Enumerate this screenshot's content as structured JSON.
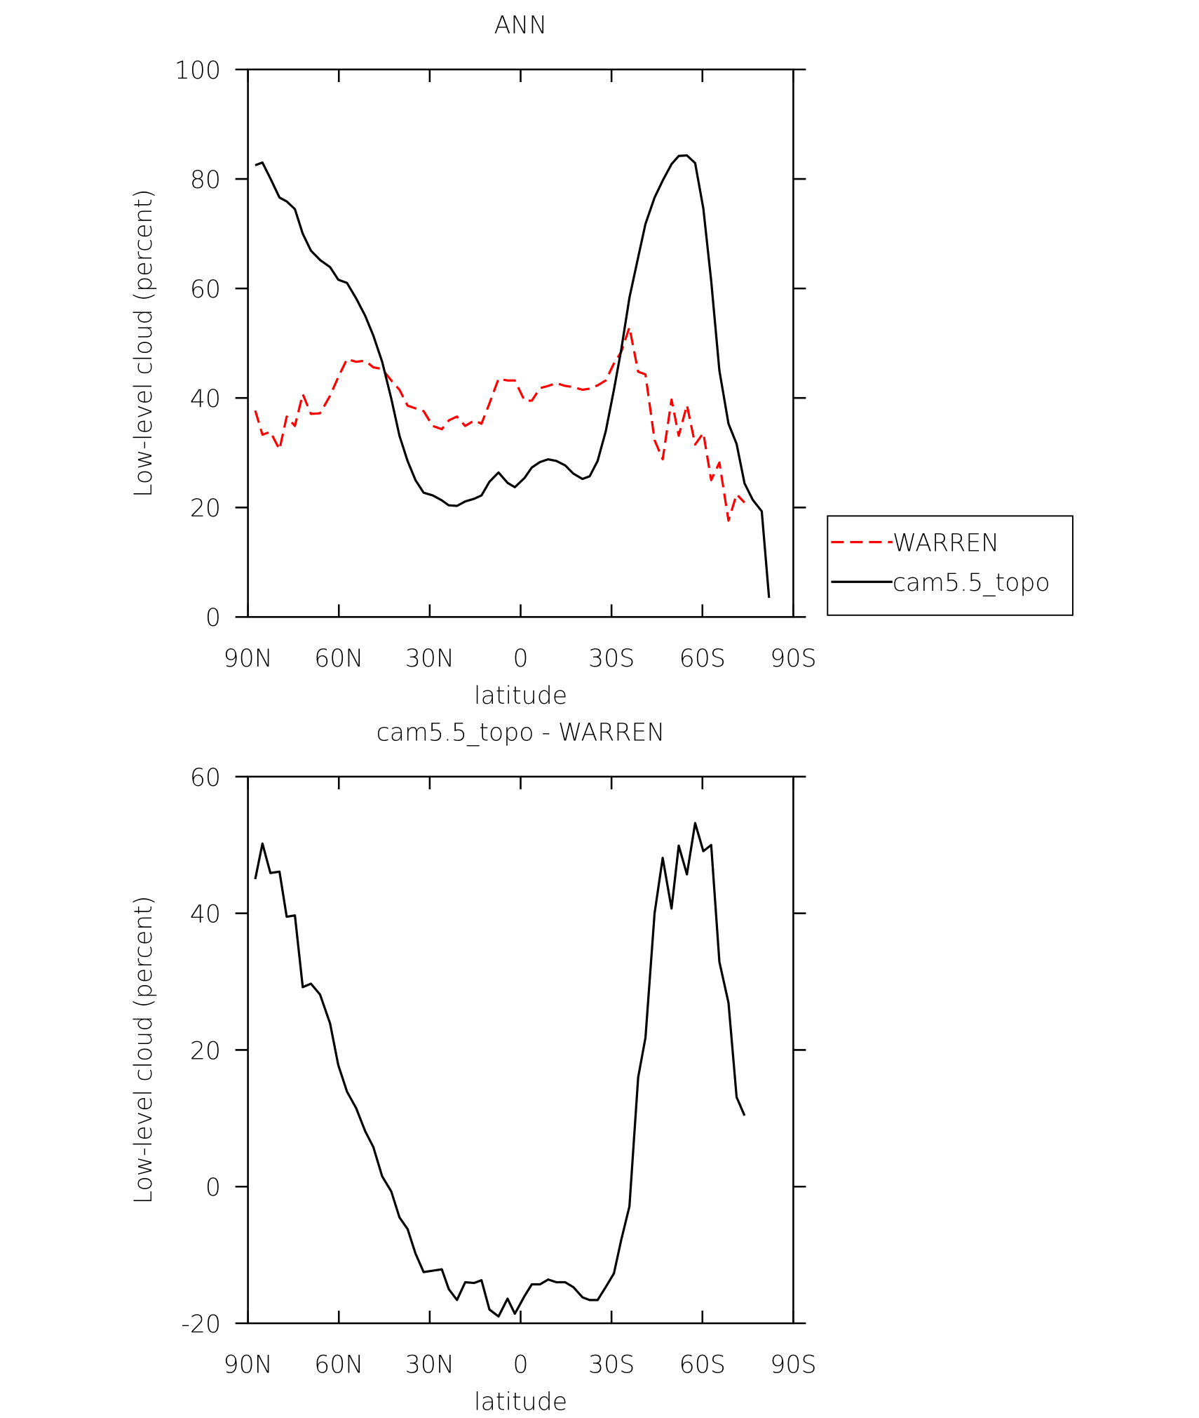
{
  "chart_data": [
    {
      "type": "line",
      "title": "ANN",
      "xlabel": "latitude",
      "ylabel": "Low-level cloud (percent)",
      "xlim": [
        90,
        -90
      ],
      "xticks": [
        {
          "value": 90,
          "label": "90N"
        },
        {
          "value": 60,
          "label": "60N"
        },
        {
          "value": 30,
          "label": "30N"
        },
        0,
        {
          "value": -30,
          "label": "30S"
        },
        {
          "value": -60,
          "label": "60S"
        },
        {
          "value": -90,
          "label": "90S"
        }
      ],
      "ylim": [
        0,
        100
      ],
      "yticks": [
        0,
        20,
        40,
        60,
        80,
        100
      ],
      "legend": "right",
      "x": [
        87.6,
        85.2,
        82.6,
        79.6,
        77.2,
        74.5,
        71.9,
        69.2,
        66.2,
        62.9,
        60.2,
        57.3,
        54.3,
        51.3,
        48.6,
        45.7,
        42.7,
        40.0,
        37.3,
        34.7,
        32.0,
        29.0,
        26.0,
        23.7,
        21.0,
        18.3,
        15.3,
        12.9,
        10.3,
        7.3,
        4.3,
        1.9,
        -1.3,
        -3.7,
        -6.4,
        -9.1,
        -11.8,
        -14.7,
        -17.4,
        -20.4,
        -22.8,
        -25.4,
        -28.1,
        -30.8,
        -33.2,
        -35.9,
        -38.8,
        -41.2,
        -44.2,
        -46.9,
        -49.8,
        -52.2,
        -54.9,
        -57.6,
        -60.3,
        -62.9,
        -65.6,
        -68.6,
        -71.3,
        -73.9,
        -76.6,
        -79.6,
        -82.0
      ],
      "series": [
        {
          "name": "WARREN",
          "color": "#ff0000",
          "dash": true,
          "values": [
            37.7,
            33.3,
            33.8,
            30.6,
            36.6,
            34.9,
            40.7,
            37.1,
            37.2,
            40.4,
            43.8,
            47.1,
            46.6,
            46.8,
            45.6,
            45.3,
            43.2,
            41.5,
            38.6,
            38.1,
            37.6,
            34.9,
            34.3,
            35.9,
            36.6,
            34.9,
            35.9,
            35.3,
            39.0,
            43.5,
            43.2,
            43.2,
            39.5,
            39.5,
            41.8,
            42.2,
            42.7,
            42.2,
            42.0,
            41.5,
            41.7,
            42.3,
            43.2,
            46.3,
            48.4,
            52.9,
            44.8,
            44.3,
            32.3,
            28.8,
            39.7,
            33.1,
            38.7,
            31.5,
            33.6,
            25.0,
            28.2,
            17.6,
            22.4,
            20.9,
            null,
            null,
            null
          ]
        },
        {
          "name": "cam5.5_topo",
          "color": "#000000",
          "dash": false,
          "values": [
            82.5,
            83.0,
            80.1,
            76.6,
            75.9,
            74.5,
            70.0,
            66.9,
            65.2,
            63.9,
            61.6,
            61.0,
            58.2,
            55.0,
            51.4,
            46.6,
            39.9,
            33.1,
            28.5,
            25.0,
            22.7,
            22.2,
            21.3,
            20.4,
            20.3,
            21.1,
            21.6,
            22.2,
            24.7,
            26.4,
            24.5,
            23.7,
            25.4,
            27.3,
            28.3,
            28.8,
            28.5,
            27.7,
            26.2,
            25.2,
            25.7,
            28.5,
            33.9,
            41.5,
            48.8,
            58.3,
            65.7,
            71.8,
            76.6,
            79.7,
            82.7,
            84.2,
            84.3,
            82.9,
            74.6,
            61.4,
            45.0,
            35.3,
            31.6,
            24.4,
            21.4,
            19.3,
            3.5
          ]
        }
      ]
    },
    {
      "type": "line",
      "title": "cam5.5_topo - WARREN",
      "xlabel": "latitude",
      "ylabel": "Low-level cloud (percent)",
      "xlim": [
        90,
        -90
      ],
      "xticks": [
        {
          "value": 90,
          "label": "90N"
        },
        {
          "value": 60,
          "label": "60N"
        },
        {
          "value": 30,
          "label": "30N"
        },
        0,
        {
          "value": -30,
          "label": "30S"
        },
        {
          "value": -60,
          "label": "60S"
        },
        {
          "value": -90,
          "label": "90S"
        }
      ],
      "ylim": [
        -20,
        60
      ],
      "yticks": [
        -20,
        0,
        20,
        40,
        60
      ],
      "x": [
        87.6,
        85.2,
        82.6,
        79.6,
        77.2,
        74.5,
        71.9,
        69.2,
        66.2,
        62.9,
        60.2,
        57.3,
        54.3,
        51.3,
        48.6,
        45.7,
        42.7,
        40.0,
        37.3,
        34.7,
        32.0,
        29.0,
        26.0,
        23.7,
        21.0,
        18.3,
        15.3,
        12.9,
        10.3,
        7.3,
        4.3,
        1.9,
        -1.3,
        -3.7,
        -6.4,
        -9.1,
        -11.8,
        -14.7,
        -17.4,
        -20.4,
        -22.8,
        -25.4,
        -28.1,
        -30.8,
        -33.2,
        -35.9,
        -38.8,
        -41.2,
        -44.2,
        -46.9,
        -49.8,
        -52.2,
        -54.9,
        -57.6,
        -60.3,
        -62.9,
        -65.6,
        -68.6,
        -71.3,
        -73.9
      ],
      "series": [
        {
          "color": "#000000",
          "dash": false,
          "values": [
            45.0,
            50.2,
            45.9,
            46.1,
            39.5,
            39.7,
            29.2,
            29.7,
            28.1,
            23.9,
            17.8,
            13.9,
            11.5,
            8.1,
            5.8,
            1.5,
            -0.7,
            -4.5,
            -6.2,
            -9.8,
            -12.5,
            -12.3,
            -12.1,
            -15.0,
            -16.6,
            -14.0,
            -14.1,
            -13.7,
            -18.0,
            -19.0,
            -16.4,
            -18.6,
            -16.0,
            -14.3,
            -14.3,
            -13.6,
            -14.0,
            -14.0,
            -14.7,
            -16.2,
            -16.6,
            -16.6,
            -14.7,
            -12.7,
            -7.8,
            -2.9,
            16.0,
            21.8,
            40.0,
            48.1,
            40.7,
            49.9,
            45.7,
            53.2,
            49.1,
            50.0,
            32.9,
            26.9,
            13.1,
            10.4
          ]
        }
      ]
    }
  ]
}
